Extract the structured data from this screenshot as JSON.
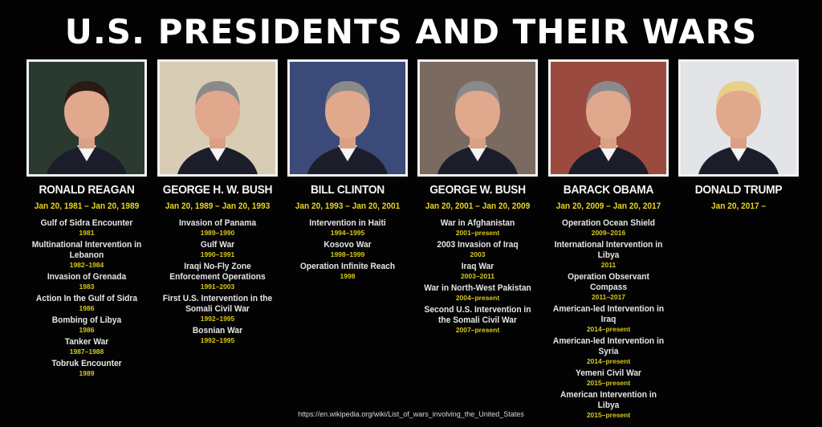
{
  "title": "U.S. PRESIDENTS AND THEIR WARS",
  "source": "https://en.wikipedia.org/wiki/List_of_wars_involving_the_United_States",
  "colors": {
    "background": "#030303",
    "name": "#f4f4f4",
    "term": "#e8d61c",
    "war_years": "#d9c81a"
  },
  "presidents": [
    {
      "name": "RONALD REAGAN",
      "term": "Jan 20, 1981 – Jan 20, 1989",
      "photo_bg": "#2a3a30",
      "wars": [
        {
          "name": "Gulf of Sidra Encounter",
          "years": "1981"
        },
        {
          "name": "Multinational Intervention in Lebanon",
          "years": "1982–1984"
        },
        {
          "name": "Invasion of Grenada",
          "years": "1983"
        },
        {
          "name": "Action In the Gulf of Sidra",
          "years": "1986"
        },
        {
          "name": "Bombing of Libya",
          "years": "1986"
        },
        {
          "name": "Tanker War",
          "years": "1987–1988"
        },
        {
          "name": "Tobruk Encounter",
          "years": "1989"
        }
      ]
    },
    {
      "name": "GEORGE H. W. BUSH",
      "term": "Jan 20, 1989 – Jan 20, 1993",
      "photo_bg": "#d8cdb4",
      "wars": [
        {
          "name": "Invasion of Panama",
          "years": "1989–1990"
        },
        {
          "name": "Gulf War",
          "years": "1990–1991"
        },
        {
          "name": "Iraqi No-Fly Zone Enforcement Operations",
          "years": "1991–2003"
        },
        {
          "name": "First U.S. Intervention in the Somali Civil War",
          "years": "1992–1995"
        },
        {
          "name": "Bosnian War",
          "years": "1992–1995"
        }
      ]
    },
    {
      "name": "BILL CLINTON",
      "term": "Jan 20, 1993 – Jan 20, 2001",
      "photo_bg": "#3b4a78",
      "wars": [
        {
          "name": "Intervention in Haiti",
          "years": "1994–1995"
        },
        {
          "name": "Kosovo War",
          "years": "1998–1999"
        },
        {
          "name": "Operation Infinite Reach",
          "years": "1998"
        }
      ]
    },
    {
      "name": "GEORGE W. BUSH",
      "term": "Jan 20, 2001 – Jan 20, 2009",
      "photo_bg": "#7a6a60",
      "wars": [
        {
          "name": "War in Afghanistan",
          "years": "2001–present"
        },
        {
          "name": "2003 Invasion of Iraq",
          "years": "2003"
        },
        {
          "name": "Iraq War",
          "years": "2003–2011"
        },
        {
          "name": "War in North-West Pakistan",
          "years": "2004–present"
        },
        {
          "name": "Second U.S. Intervention in the Somali Civil War",
          "years": "2007–present"
        }
      ]
    },
    {
      "name": "BARACK OBAMA",
      "term": "Jan 20, 2009 – Jan 20, 2017",
      "photo_bg": "#9a4a3e",
      "wars": [
        {
          "name": "Operation Ocean Shield",
          "years": "2009–2016"
        },
        {
          "name": "International Intervention in Libya",
          "years": "2011"
        },
        {
          "name": "Operation Observant Compass",
          "years": "2011–2017"
        },
        {
          "name": "American-led Intervention in Iraq",
          "years": "2014–present"
        },
        {
          "name": "American-led Intervention in Syria",
          "years": "2014–present"
        },
        {
          "name": "Yemeni Civil War",
          "years": "2015–present"
        },
        {
          "name": "American Intervention in Libya",
          "years": "2015–present"
        }
      ]
    },
    {
      "name": "DONALD TRUMP",
      "term": "Jan 20, 2017 –",
      "photo_bg": "#e2e4e8",
      "wars": []
    }
  ]
}
